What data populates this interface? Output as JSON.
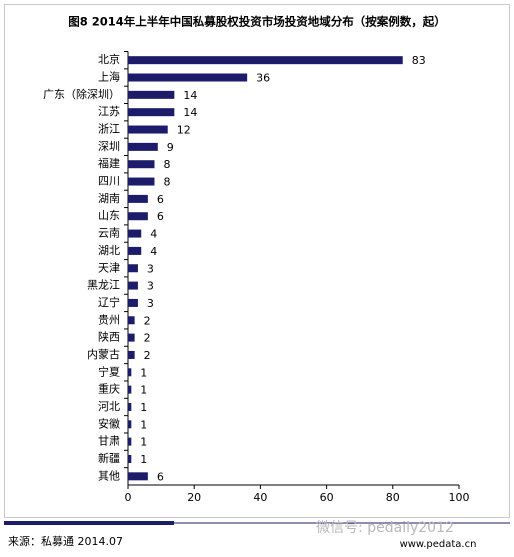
{
  "chart_data": {
    "type": "bar",
    "orientation": "horizontal",
    "title": "图8 2014年上半年中国私募股权投资市场投资地域分布（按案例数，起）",
    "categories": [
      "北京",
      "上海",
      "广东（除深圳）",
      "江苏",
      "浙江",
      "深圳",
      "福建",
      "四川",
      "湖南",
      "山东",
      "云南",
      "湖北",
      "天津",
      "黑龙江",
      "辽宁",
      "贵州",
      "陕西",
      "内蒙古",
      "宁夏",
      "重庆",
      "河北",
      "安徽",
      "甘肃",
      "新疆",
      "其他"
    ],
    "values": [
      83,
      36,
      14,
      14,
      12,
      9,
      8,
      8,
      6,
      6,
      4,
      4,
      3,
      3,
      3,
      2,
      2,
      2,
      1,
      1,
      1,
      1,
      1,
      1,
      6
    ],
    "color": "#1c1c6b",
    "xlim": [
      0,
      100
    ],
    "xticks": [
      0,
      20,
      40,
      60,
      80,
      100
    ],
    "source": "来源：私募通  2014.07",
    "watermark": "微信号: pedaily2012",
    "website": "www.pedata.cn"
  }
}
